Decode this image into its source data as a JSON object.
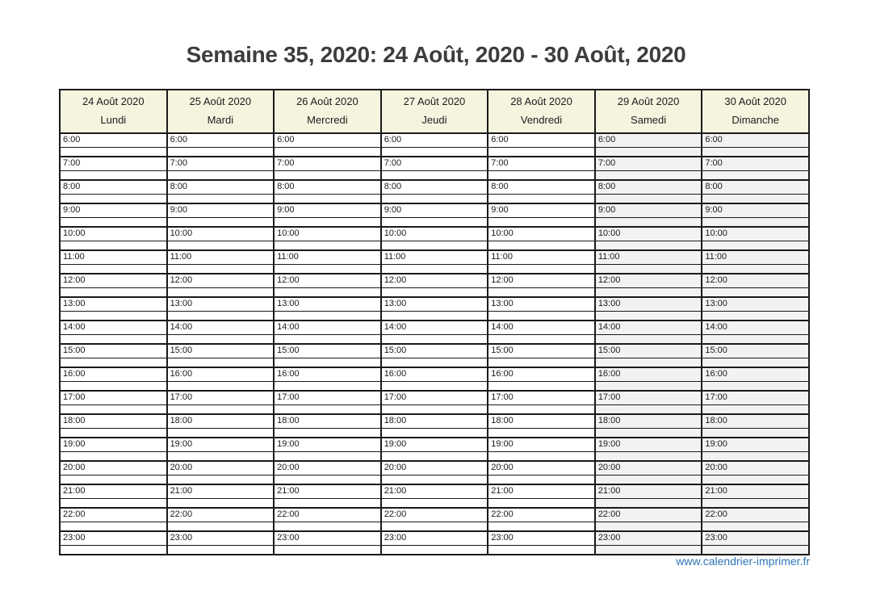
{
  "page": {
    "title": "Semaine 35, 2020: 24 Août, 2020 - 30 Août, 2020",
    "footer_link": "www.calendrier-imprimer.fr"
  },
  "calendar": {
    "days": [
      {
        "date": "24 Août 2020",
        "name": "Lundi",
        "weekend": false
      },
      {
        "date": "25 Août 2020",
        "name": "Mardi",
        "weekend": false
      },
      {
        "date": "26 Août 2020",
        "name": "Mercredi",
        "weekend": false
      },
      {
        "date": "27 Août 2020",
        "name": "Jeudi",
        "weekend": false
      },
      {
        "date": "28 Août 2020",
        "name": "Vendredi",
        "weekend": false
      },
      {
        "date": "29 Août 2020",
        "name": "Samedi",
        "weekend": true
      },
      {
        "date": "30 Août 2020",
        "name": "Dimanche",
        "weekend": true
      }
    ],
    "hours": [
      "6:00",
      "7:00",
      "8:00",
      "9:00",
      "10:00",
      "11:00",
      "12:00",
      "13:00",
      "14:00",
      "15:00",
      "16:00",
      "17:00",
      "18:00",
      "19:00",
      "20:00",
      "21:00",
      "22:00",
      "23:00"
    ]
  },
  "colors": {
    "header_bg": "#f5f4df",
    "weekend_bg": "#f2f2f2",
    "border": "#1a1a1a",
    "link": "#2e75b6",
    "title": "#3d3d3d"
  }
}
